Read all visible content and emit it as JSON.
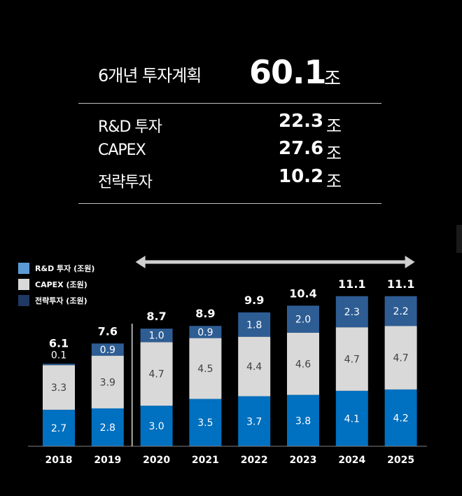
{
  "summary": {
    "title_label": "6개년 투자계획",
    "title_value": "60.1",
    "title_unit": "조",
    "rows": [
      {
        "label": "R&D 투자",
        "value": "22.3",
        "unit": "조"
      },
      {
        "label": "CAPEX",
        "value": "27.6",
        "unit": "조"
      },
      {
        "label": "전략투자",
        "value": "10.2",
        "unit": "조"
      }
    ]
  },
  "colors": {
    "rd": "#0070c0",
    "capex": "#d9d9d9",
    "strategic": "#2e5d94",
    "background": "#000000"
  },
  "chart_data": {
    "type": "bar",
    "stacked": true,
    "categories": [
      "2018",
      "2019",
      "2020",
      "2021",
      "2022",
      "2023",
      "2024",
      "2025"
    ],
    "series": [
      {
        "name": "R&D 투자 (조원)",
        "values": [
          2.7,
          2.8,
          3.0,
          3.5,
          3.7,
          3.8,
          4.1,
          4.2
        ]
      },
      {
        "name": "CAPEX (조원)",
        "values": [
          3.3,
          3.9,
          4.7,
          4.5,
          4.4,
          4.6,
          4.7,
          4.7
        ]
      },
      {
        "name": "전략투자 (조원)",
        "values": [
          0.1,
          0.9,
          1.0,
          0.9,
          1.8,
          2.0,
          2.3,
          2.2
        ]
      }
    ],
    "segment_labels": [
      [
        "2.7",
        "2.8",
        "3.0",
        "3.5",
        "3.7",
        "3.8",
        "4.1",
        "4.2"
      ],
      [
        "3.3",
        "3.9",
        "4.7",
        "4.5",
        "4.4",
        "4.6",
        "4.7",
        "4.7"
      ],
      [
        "0.1",
        "0.9",
        "1.0",
        "0.9",
        "1.8",
        "2.0",
        "2.3",
        "2.2"
      ]
    ],
    "totals": [
      "6.1",
      "7.6",
      "8.7",
      "8.9",
      "9.9",
      "10.4",
      "11.1",
      "11.1"
    ],
    "legend": [
      "R&D 투자 (조원)",
      "CAPEX (조원)",
      "전략투자 (조원)"
    ],
    "legend_position": "top-left",
    "plan_range": [
      "2020",
      "2025"
    ],
    "grid": false
  }
}
